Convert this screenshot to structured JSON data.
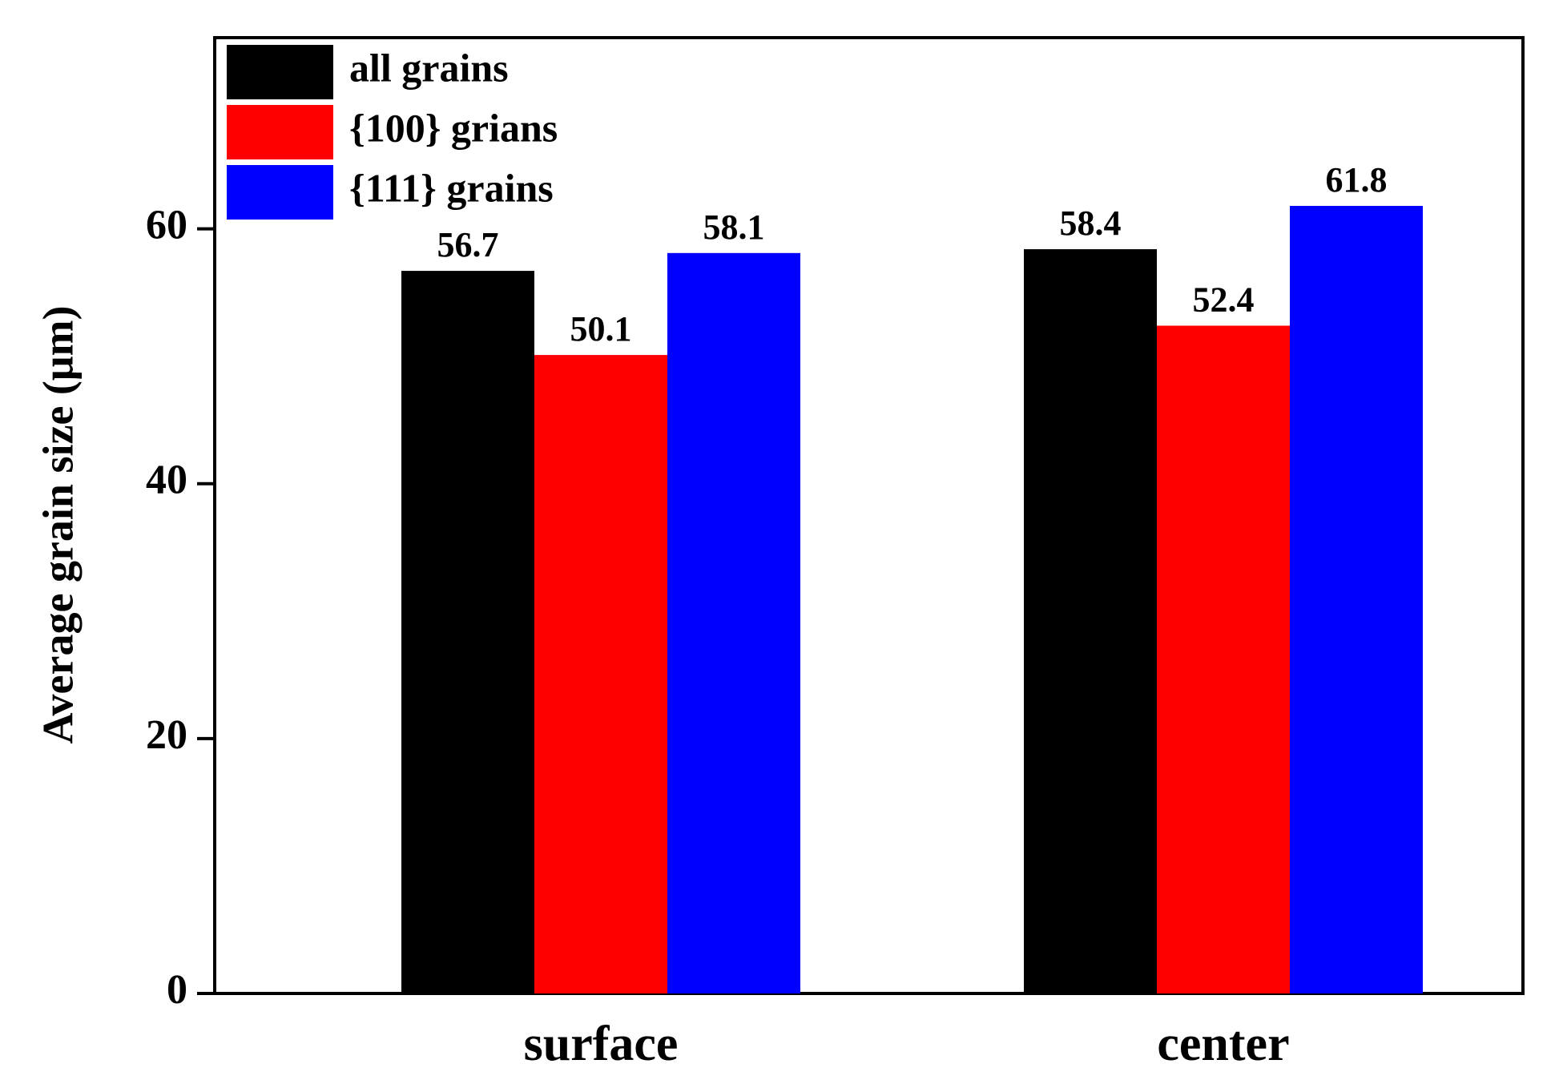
{
  "chart_data": {
    "type": "bar",
    "title": "",
    "xlabel": "",
    "ylabel": "Average grain size (μm)",
    "categories": [
      "surface",
      "center"
    ],
    "series": [
      {
        "name": "all grains",
        "color": "#000000",
        "values": [
          56.7,
          58.4
        ],
        "labels": [
          "56.7",
          "58.4"
        ]
      },
      {
        "name": "{100} grians",
        "color": "#ff0000",
        "values": [
          50.1,
          52.4
        ],
        "labels": [
          "50.1",
          "52.4"
        ]
      },
      {
        "name": "{111} grains",
        "color": "#0000ff",
        "values": [
          58.1,
          61.8
        ],
        "labels": [
          "58.1",
          "61.8"
        ]
      }
    ],
    "ylim": [
      0,
      75
    ],
    "yticks": [
      0,
      20,
      40,
      60
    ],
    "ytick_labels": [
      "0",
      "20",
      "40",
      "60"
    ],
    "grid": false,
    "legend_position": "top-left"
  }
}
